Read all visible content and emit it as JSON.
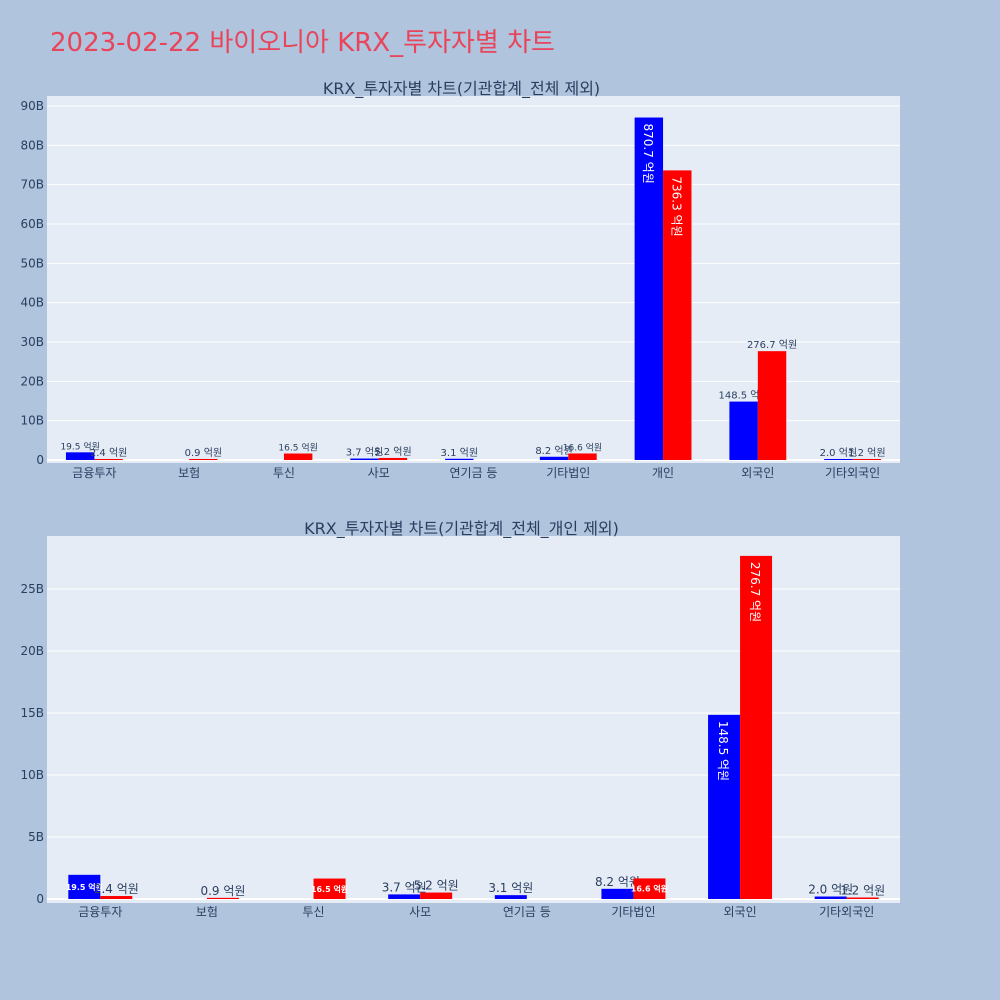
{
  "page": {
    "title": "2023-02-22 바이오니아 KRX_투자자별 차트"
  },
  "colors": {
    "buy": "#0000ff",
    "sell": "#ff0000",
    "plot_bg": "#e5ecf6",
    "page_bg": "#b0c4de",
    "title": "#e8445a"
  },
  "chart_data": [
    {
      "type": "bar",
      "title": "KRX_투자자별 차트(기관합계_전체 제외)",
      "categories": [
        "금융투자",
        "보험",
        "투신",
        "사모",
        "연기금 등",
        "기타법인",
        "개인",
        "외국인",
        "기타외국인"
      ],
      "series": [
        {
          "values": [
            1.95,
            0.0,
            0.0,
            0.37,
            0.31,
            0.82,
            87.07,
            14.85,
            0.2
          ],
          "labels": [
            "19.5 억원",
            "",
            "",
            "3.7 억원",
            "3.1 억원",
            "8.2 억원",
            "870.7 억원",
            "148.5 억원",
            "2.0 억원"
          ]
        },
        {
          "values": [
            0.24,
            0.09,
            1.65,
            0.52,
            0.0,
            1.66,
            73.63,
            27.67,
            0.12
          ],
          "labels": [
            "2.4 억원",
            "0.9 억원",
            "16.5 억원",
            "5.2 억원",
            "",
            "16.6 억원",
            "736.3 억원",
            "276.7 억원",
            "1.2 억원"
          ]
        }
      ],
      "ylim": [
        0,
        92
      ],
      "yticks": [
        0,
        10,
        20,
        30,
        40,
        50,
        60,
        70,
        80,
        90
      ],
      "ytick_labels": [
        "0",
        "10B",
        "20B",
        "30B",
        "40B",
        "50B",
        "60B",
        "70B",
        "80B",
        "90B"
      ],
      "grid": true
    },
    {
      "type": "bar",
      "title": "KRX_투자자별 차트(기관합계_전체_개인 제외)",
      "categories": [
        "금융투자",
        "보험",
        "투신",
        "사모",
        "연기금 등",
        "기타법인",
        "외국인",
        "기타외국인"
      ],
      "series": [
        {
          "values": [
            1.95,
            0.0,
            0.0,
            0.37,
            0.31,
            0.82,
            14.85,
            0.2
          ],
          "labels": [
            "19.5 억원",
            "",
            "",
            "3.7 억원",
            "3.1 억원",
            "8.2 억원",
            "148.5 억원",
            "2.0 억원"
          ]
        },
        {
          "values": [
            0.24,
            0.09,
            1.65,
            0.52,
            0.0,
            1.66,
            27.67,
            0.12
          ],
          "labels": [
            "2.4 억원",
            "0.9 억원",
            "16.5 억원",
            "5.2 억원",
            "",
            "16.6 억원",
            "276.7 억원",
            "1.2 억원"
          ]
        }
      ],
      "ylim": [
        0,
        29
      ],
      "yticks": [
        0,
        5,
        10,
        15,
        20,
        25
      ],
      "ytick_labels": [
        "0",
        "5B",
        "10B",
        "15B",
        "20B",
        "25B"
      ],
      "grid": true
    }
  ]
}
